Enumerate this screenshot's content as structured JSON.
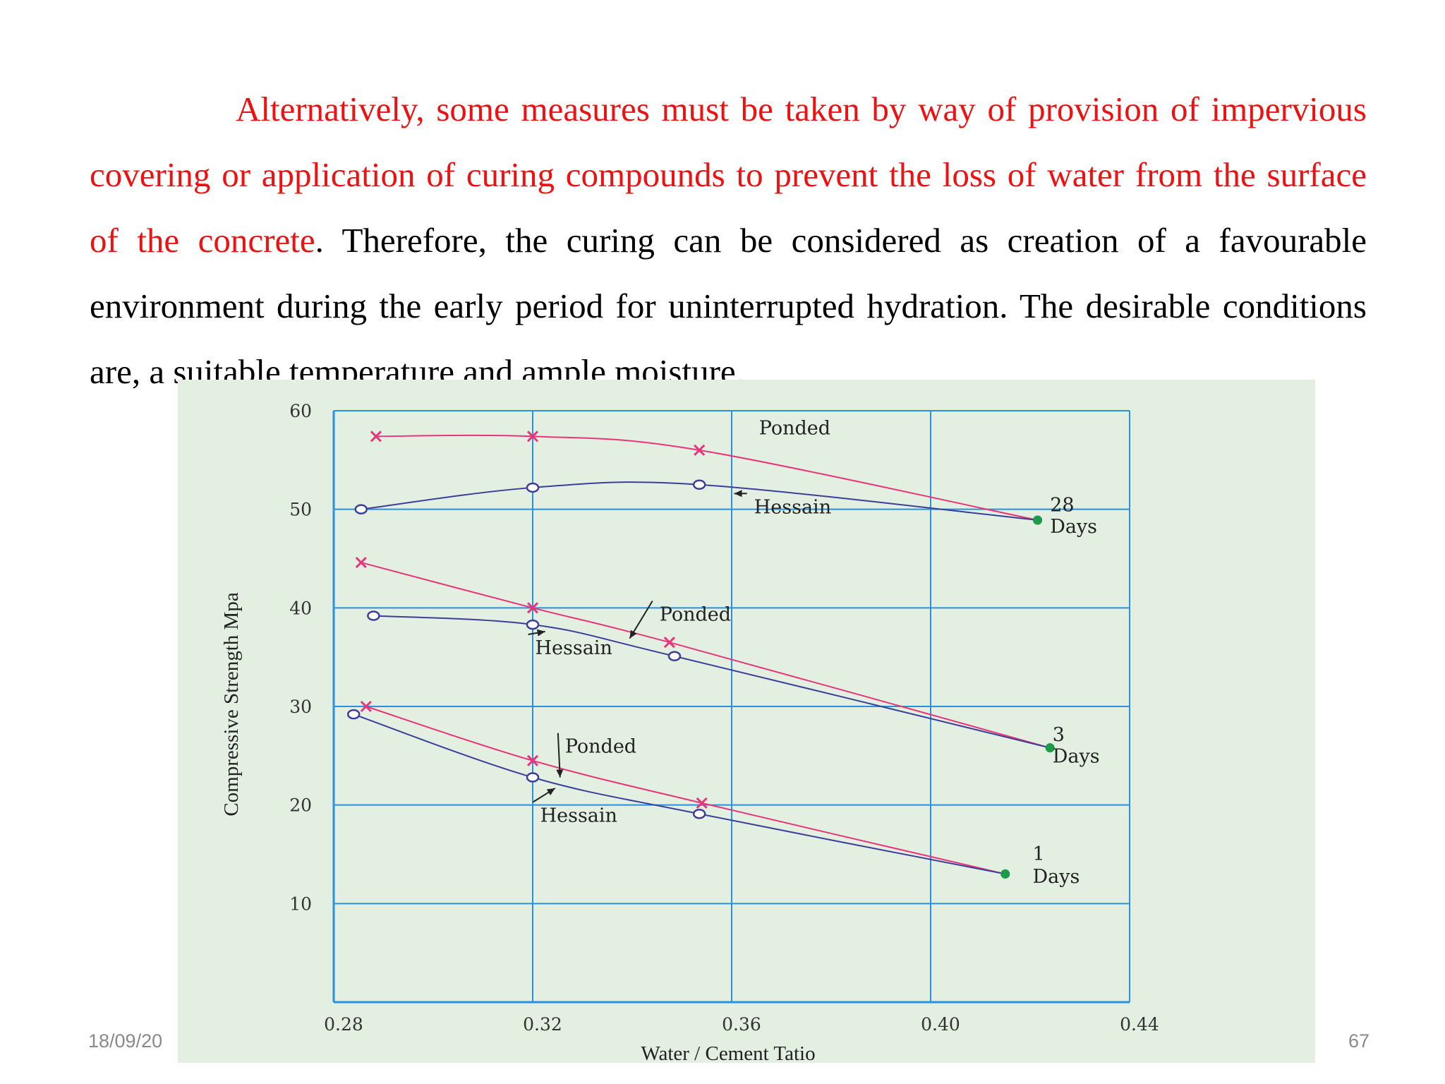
{
  "slide": {
    "paragraph": {
      "red": "Alternatively, some measures must be taken by way of provision of impervious covering or application of curing compounds to prevent the loss of water from the surface of the concrete",
      "black": ". Therefore, the curing can be considered as creation of a favourable environment during the early period for uninterrupted hydration. The desirable conditions are, a suitable temperature and ample moisture."
    },
    "footer_date": "18/09/20",
    "footer_page": "67"
  },
  "colors": {
    "ponded": "#e8357a",
    "hessain": "#3b3f9a",
    "endpoint": "#1f9a4a",
    "grid": "#2a90e0",
    "text_red": "#ee1111"
  },
  "chart_data": {
    "type": "line",
    "xlabel": "Water / Cement Tatio",
    "ylabel": "Compressive Strength Mpa",
    "xlim": [
      0.28,
      0.44
    ],
    "ylim": [
      0,
      60
    ],
    "x_ticks": [
      "0.28",
      "0.32",
      "0.36",
      "0.40",
      "0.44"
    ],
    "x_tick_values": [
      0.28,
      0.32,
      0.36,
      0.4,
      0.44
    ],
    "y_ticks": [
      "10",
      "20",
      "30",
      "40",
      "50",
      "60"
    ],
    "y_tick_values": [
      10,
      20,
      30,
      40,
      50,
      60
    ],
    "grid": true,
    "series": [
      {
        "name": "Ponded",
        "group": "28 Days",
        "style": "ponded",
        "x": [
          0.2885,
          0.32,
          0.3535,
          0.4215
        ],
        "y": [
          57.4,
          57.4,
          56.0,
          48.9
        ]
      },
      {
        "name": "Hessain",
        "group": "28 Days",
        "style": "hessain",
        "x": [
          0.2855,
          0.32,
          0.3535,
          0.4215
        ],
        "y": [
          50.0,
          52.2,
          52.5,
          48.9
        ]
      },
      {
        "name": "Ponded",
        "group": "3 Days",
        "style": "ponded",
        "x": [
          0.2855,
          0.32,
          0.3475,
          0.424
        ],
        "y": [
          44.6,
          40.0,
          36.5,
          25.8
        ]
      },
      {
        "name": "Hessain",
        "group": "3 Days",
        "style": "hessain",
        "x": [
          0.288,
          0.32,
          0.3485,
          0.424
        ],
        "y": [
          39.2,
          38.3,
          35.1,
          25.8
        ]
      },
      {
        "name": "Ponded",
        "group": "1 Days",
        "style": "ponded",
        "x": [
          0.2865,
          0.32,
          0.354,
          0.415
        ],
        "y": [
          30.0,
          24.5,
          20.2,
          13.0
        ]
      },
      {
        "name": "Hessain",
        "group": "1 Days",
        "style": "hessain",
        "x": [
          0.284,
          0.32,
          0.3535,
          0.415
        ],
        "y": [
          29.2,
          22.8,
          19.1,
          13.0
        ]
      }
    ],
    "annotations": [
      {
        "text": "Ponded",
        "x": 0.3655,
        "y": 57.6,
        "arrow": false
      },
      {
        "text": "Hessain",
        "x": 0.3645,
        "y": 49.6,
        "arrow": true,
        "ax": 0.3605,
        "ay": 51.6
      },
      {
        "text": "28",
        "x": 0.424,
        "y": 49.8,
        "arrow": false
      },
      {
        "text": "Days",
        "x": 0.424,
        "y": 47.6,
        "arrow": false
      },
      {
        "text": "Ponded",
        "x": 0.3455,
        "y": 38.7,
        "arrow": true,
        "ax": 0.3395,
        "ay": 36.9
      },
      {
        "text": "Hessain",
        "x": 0.3205,
        "y": 35.3,
        "arrow": true,
        "ax": 0.3225,
        "ay": 37.6
      },
      {
        "text": "3",
        "x": 0.4245,
        "y": 26.5,
        "arrow": false
      },
      {
        "text": "Days",
        "x": 0.4245,
        "y": 24.3,
        "arrow": false
      },
      {
        "text": "Ponded",
        "x": 0.3265,
        "y": 25.3,
        "arrow": true,
        "ax": 0.3255,
        "ay": 22.8
      },
      {
        "text": "Hessain",
        "x": 0.3215,
        "y": 18.3,
        "arrow": true,
        "ax": 0.3245,
        "ay": 21.7
      },
      {
        "text": "1",
        "x": 0.4205,
        "y": 14.4,
        "arrow": false
      },
      {
        "text": "Days",
        "x": 0.4205,
        "y": 12.1,
        "arrow": false
      }
    ]
  }
}
